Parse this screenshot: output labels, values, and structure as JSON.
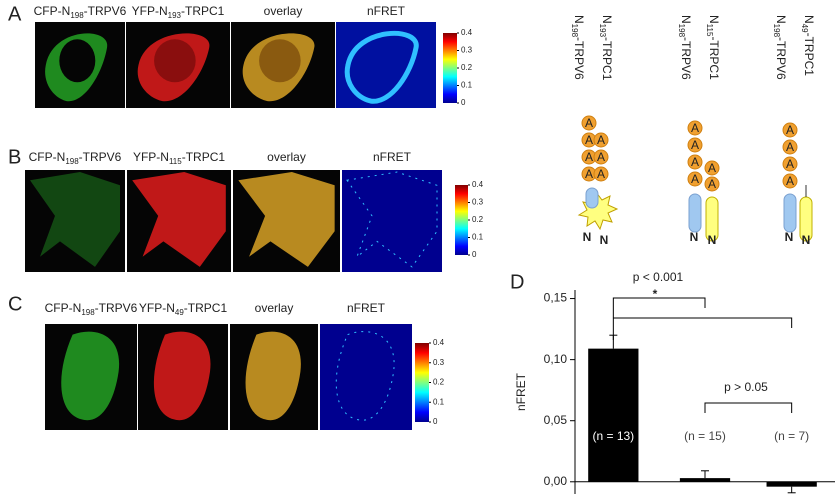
{
  "panels": [
    {
      "letter": "A",
      "titles": [
        {
          "pre": "CFP-N",
          "sub": "198",
          "post": "-TRPV6"
        },
        {
          "pre": "YFP-N",
          "sub": "193",
          "post": "-TRPC1"
        },
        {
          "text": "overlay"
        },
        {
          "text": "nFRET"
        }
      ],
      "colorbar_ticks": [
        0,
        0.1,
        0.2,
        0.3,
        0.4
      ]
    },
    {
      "letter": "B",
      "titles": [
        {
          "pre": "CFP-N",
          "sub": "198",
          "post": "-TRPV6"
        },
        {
          "pre": "YFP-N",
          "sub": "115",
          "post": "-TRPC1"
        },
        {
          "text": "overlay"
        },
        {
          "text": "nFRET"
        }
      ],
      "colorbar_ticks": [
        0,
        0.1,
        0.2,
        0.3,
        0.4
      ]
    },
    {
      "letter": "C",
      "titles": [
        {
          "pre": "CFP-N",
          "sub": "198",
          "post": "-TRPV6"
        },
        {
          "pre": "YFP-N",
          "sub": "49",
          "post": "-TRPC1"
        },
        {
          "text": "overlay"
        },
        {
          "text": "nFRET"
        }
      ],
      "colorbar_ticks": [
        0,
        0.1,
        0.2,
        0.3,
        0.4
      ]
    }
  ],
  "schematic": {
    "bead_label": "A",
    "terminus_label": "N",
    "groups": [
      {
        "left": {
          "pre": "N",
          "sub": "198",
          "post": "-TRPV6"
        },
        "right": {
          "pre": "N",
          "sub": "193",
          "post": "-TRPC1"
        }
      },
      {
        "left": {
          "pre": "N",
          "sub": "198",
          "post": "-TRPV6"
        },
        "right": {
          "pre": "N",
          "sub": "115",
          "post": "-TRPC1"
        }
      },
      {
        "left": {
          "pre": "N",
          "sub": "198",
          "post": "-TRPV6"
        },
        "right": {
          "pre": "N",
          "sub": "49",
          "post": "-TRPC1"
        }
      }
    ]
  },
  "chart_data": {
    "type": "bar",
    "letter": "D",
    "y_label": "nFRET",
    "categories": [
      null,
      null,
      null
    ],
    "values": [
      0.109,
      0.003,
      -0.004
    ],
    "errors": [
      0.011,
      0.006,
      0.005
    ],
    "n_labels": [
      "(n = 13)",
      "(n = 15)",
      "(n = 7)"
    ],
    "color": "#000000",
    "ylim": [
      -0.01,
      0.157
    ],
    "yticks": [
      {
        "value": 0,
        "label": "0,00"
      },
      {
        "value": 0.05,
        "label": "0,05"
      },
      {
        "value": 0.1,
        "label": "0,10"
      },
      {
        "value": 0.15,
        "label": "0,15"
      }
    ],
    "annotations": [
      "p < 0.001",
      "*",
      "p > 0.05"
    ]
  }
}
